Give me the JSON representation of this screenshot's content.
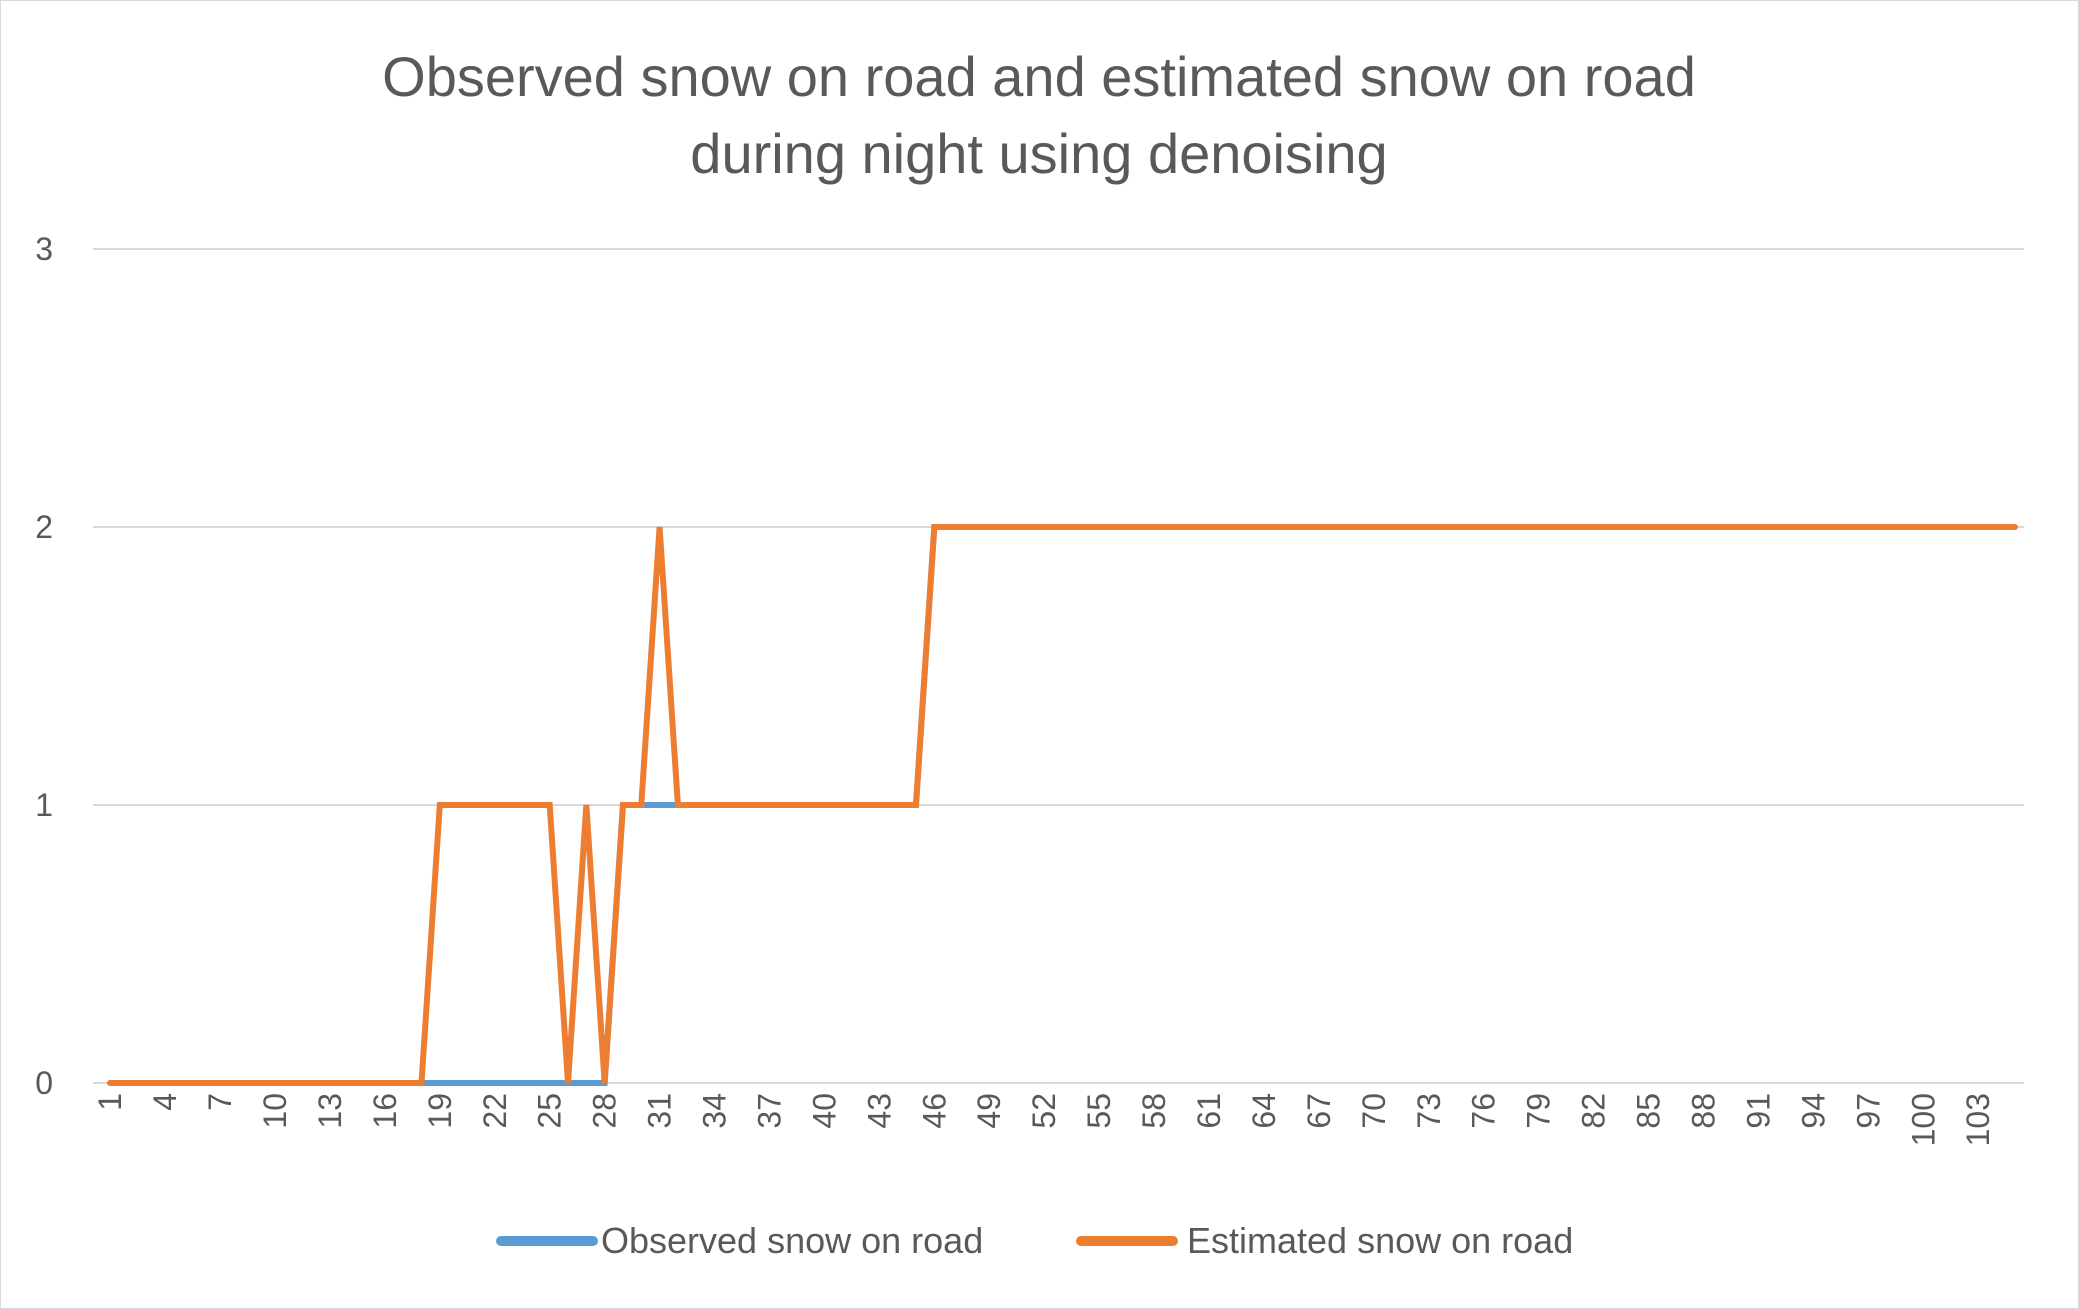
{
  "chart_data": {
    "type": "line",
    "title": "Observed snow on road and estimated snow on road during night using denoising",
    "title_lines": [
      "Observed snow on road and estimated snow on road",
      "during night using denoising"
    ],
    "xlabel": "",
    "ylabel": "",
    "ylim": [
      0,
      3
    ],
    "y_ticks": [
      "0",
      "1",
      "2",
      "3"
    ],
    "x_start": 1,
    "x_end": 105,
    "x_tick_labels": [
      "1",
      "4",
      "7",
      "10",
      "13",
      "16",
      "19",
      "22",
      "25",
      "28",
      "31",
      "34",
      "37",
      "40",
      "43",
      "46",
      "49",
      "52",
      "55",
      "58",
      "61",
      "64",
      "67",
      "70",
      "73",
      "76",
      "79",
      "82",
      "85",
      "88",
      "91",
      "94",
      "97",
      "100",
      "103"
    ],
    "grid": true,
    "legend_position": "bottom",
    "series": [
      {
        "name": "Observed snow on road",
        "color": "#5b9bd5",
        "points": [
          [
            1,
            0
          ],
          [
            18,
            0
          ],
          [
            28,
            0
          ],
          [
            29,
            1
          ],
          [
            31,
            1
          ],
          [
            32,
            1
          ],
          [
            45,
            1
          ],
          [
            46,
            2
          ],
          [
            105,
            2
          ]
        ]
      },
      {
        "name": "Estimated snow on road",
        "color": "#ed7d31",
        "points": [
          [
            1,
            0
          ],
          [
            18,
            0
          ],
          [
            19,
            1
          ],
          [
            25,
            1
          ],
          [
            26,
            0
          ],
          [
            27,
            1
          ],
          [
            28,
            0
          ],
          [
            29,
            1
          ],
          [
            30,
            1
          ],
          [
            31,
            2
          ],
          [
            32,
            1
          ],
          [
            45,
            1
          ],
          [
            46,
            2
          ],
          [
            105,
            2
          ]
        ]
      }
    ]
  }
}
